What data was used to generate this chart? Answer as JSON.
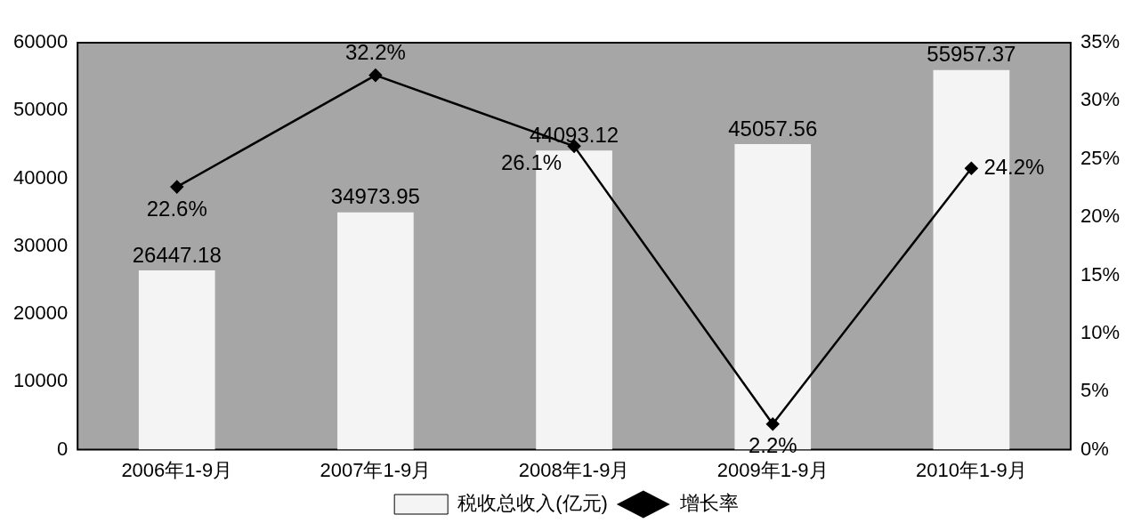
{
  "chart_data": {
    "type": "bar",
    "categories": [
      "2006年1-9月",
      "2007年1-9月",
      "2008年1-9月",
      "2009年1-9月",
      "2010年1-9月"
    ],
    "series": [
      {
        "name": "税收总收入(亿元)",
        "color": "#f4f4f4",
        "values": [
          26447.18,
          34973.95,
          44093.12,
          45057.56,
          55957.37
        ],
        "value_labels": [
          "26447.18",
          "34973.95",
          "44093.12",
          "45057.56",
          "55957.37"
        ]
      },
      {
        "name": "增长率",
        "type": "line",
        "axis": "y2",
        "color": "#000000",
        "values": [
          22.6,
          32.2,
          26.1,
          2.2,
          24.2
        ],
        "value_labels": [
          "22.6%",
          "32.2%",
          "26.1%",
          "2.2%",
          "24.2%"
        ]
      }
    ],
    "ylim": [
      0,
      60000
    ],
    "yticks": [
      0,
      10000,
      20000,
      30000,
      40000,
      50000,
      60000
    ],
    "y2lim": [
      0,
      35
    ],
    "y2ticks": [
      {
        "value": 0,
        "label": "0%"
      },
      {
        "value": 5,
        "label": "5%"
      },
      {
        "value": 10,
        "label": "10%"
      },
      {
        "value": 15,
        "label": "15%"
      },
      {
        "value": 20,
        "label": "20%"
      },
      {
        "value": 25,
        "label": "25%"
      },
      {
        "value": 30,
        "label": "30%"
      },
      {
        "value": 35,
        "label": "35%"
      }
    ],
    "grid": false,
    "legend": "bottom",
    "marker": "diamond",
    "line_style": "solid"
  }
}
